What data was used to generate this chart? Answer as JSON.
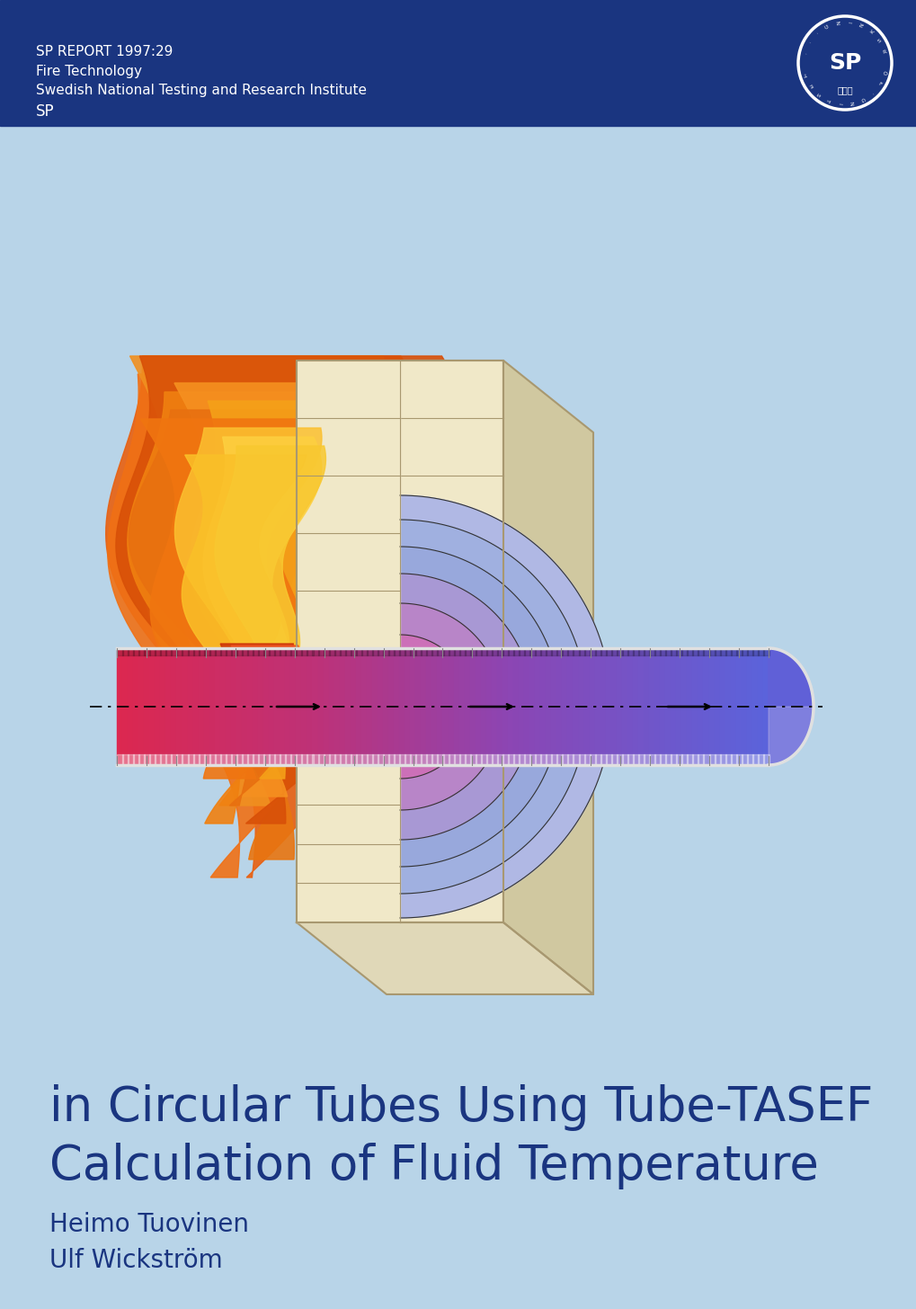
{
  "bg_color": "#b8d4e8",
  "author1": "Ulf Wickström",
  "author2": "Heimo Tuovinen",
  "title_line1": "Calculation of Fluid Temperature",
  "title_line2": "in Circular Tubes Using Tube-TASEF",
  "footer_bg": "#1a3580",
  "footer_line1": "SP",
  "footer_line2": "Swedish National Testing and Research Institute",
  "footer_line3": "Fire Technology",
  "footer_line4": "SP REPORT 1997:29",
  "author_color": "#1a3580",
  "title_color": "#1a3580",
  "footer_text_color": "#ffffff",
  "wall_color": "#f0e8c8",
  "wall_edge": "#a89870",
  "wall_shadow": "#d8d0a8",
  "arc_colors": [
    "#e060a0",
    "#d070b0",
    "#c080c0",
    "#b090cc",
    "#a098d4",
    "#90a0d8",
    "#a0a8dc"
  ],
  "tube_color_left": "#e03060",
  "tube_color_mid": "#c040a0",
  "tube_color_right": "#8060b0",
  "tube_outline": "#cccccc"
}
